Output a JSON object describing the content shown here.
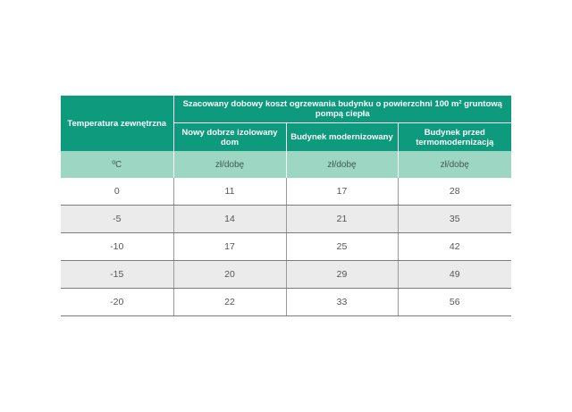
{
  "table": {
    "col_header": "Temperatura zewnętrzna",
    "group_header": "Szacowany dobowy koszt ogrzewania budynku o powierzchni 100 m² gruntową pompą ciepła",
    "sub_headers": [
      "Nowy dobrze izolowany dom",
      "Budynek modernizowany",
      "Budynek przed termomodernizacją"
    ],
    "units": [
      "ºC",
      "zł/dobę",
      "zł/dobę",
      "zł/dobę"
    ],
    "rows": [
      [
        "0",
        "11",
        "17",
        "28"
      ],
      [
        "-5",
        "14",
        "21",
        "35"
      ],
      [
        "-10",
        "17",
        "25",
        "42"
      ],
      [
        "-15",
        "20",
        "29",
        "49"
      ],
      [
        "-20",
        "22",
        "33",
        "56"
      ]
    ]
  },
  "colors": {
    "header_bg": "#0e9a7c",
    "unit_row_bg": "#9ed6c4",
    "shaded_row_bg": "#ebebeb"
  }
}
